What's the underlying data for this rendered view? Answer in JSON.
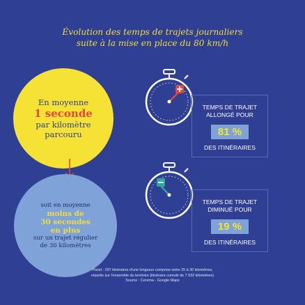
{
  "title": {
    "line1": "Évolution des temps de trajets journaliers",
    "line2": "suite à la mise en place du 80 km/h"
  },
  "left": {
    "yellow_circle": {
      "line1": "En moyenne",
      "line2": "1 seconde",
      "line3": "par kilomètre",
      "line4": "parcouru"
    },
    "blue_circle": {
      "line1": "soit en moyenne",
      "line2": "moins de",
      "line3": "30 secondes",
      "line4": "en plus",
      "line5": "sur un trajet régulier",
      "line6": "de 30 kilomètres"
    }
  },
  "right": [
    {
      "label_line1": "TEMPS DE TRAJET",
      "label_line2": "ALLONGÉ POUR",
      "percent": "81 %",
      "foot": "DES ITINÉRAIRES",
      "icon": "stopwatch-plus-icon",
      "badge_color": "#e04a3a"
    },
    {
      "label_line1": "TEMPS DE TRAJET",
      "label_line2": "DIMINUÉ POUR",
      "percent": "19 %",
      "foot": "DES ITINÉRAIRES",
      "icon": "stopwatch-minus-icon",
      "badge_color": "#2fa89a"
    }
  ],
  "footnote": {
    "line1": "Panel : 297 itinéraires d'une longueur comprise entre 25 à 30 kilomètres,",
    "line2": "répartis sur l'ensemble du territoire (itinéraire cumulé de 7 932 kilomètres)",
    "line3": "Source : Cerema - Google Maps"
  },
  "colors": {
    "background": "#2f3f93",
    "yellow": "#f5e234",
    "light_blue": "#7fa3d9",
    "red": "#e04a3a"
  }
}
